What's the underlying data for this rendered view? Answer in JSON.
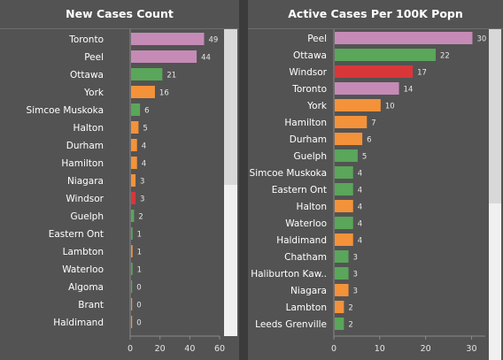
{
  "chart_data": [
    {
      "type": "bar",
      "orientation": "horizontal",
      "title": "New Cases Count",
      "categories": [
        "Toronto",
        "Peel",
        "Ottawa",
        "York",
        "Simcoe Muskoka",
        "Halton",
        "Durham",
        "Hamilton",
        "Niagara",
        "Windsor",
        "Guelph",
        "Eastern Ont",
        "Lambton",
        "Waterloo",
        "Algoma",
        "Brant",
        "Haldimand"
      ],
      "values": [
        49,
        44,
        21,
        16,
        6,
        5,
        4,
        4,
        3,
        3,
        2,
        1,
        1,
        1,
        0,
        0,
        0
      ],
      "colors": [
        "#c58bb6",
        "#c58bb6",
        "#5aa65a",
        "#f4923a",
        "#5aa65a",
        "#f4923a",
        "#f4923a",
        "#f4923a",
        "#f4923a",
        "#d9363a",
        "#5aa65a",
        "#5aa65a",
        "#f4923a",
        "#5aa65a",
        "#5aa65a",
        "#f4923a",
        "#f4923a"
      ],
      "xticks": [
        0,
        20,
        40,
        60
      ],
      "xlim": [
        0,
        60
      ],
      "grid": false,
      "xlabel": "",
      "ylabel": ""
    },
    {
      "type": "bar",
      "orientation": "horizontal",
      "title": "Active Cases Per 100K Popn",
      "categories": [
        "Peel",
        "Ottawa",
        "Windsor",
        "Toronto",
        "York",
        "Hamilton",
        "Durham",
        "Guelph",
        "Simcoe Muskoka",
        "Eastern Ont",
        "Halton",
        "Waterloo",
        "Haldimand",
        "Chatham",
        "Haliburton Kaw..",
        "Niagara",
        "Lambton",
        "Leeds Grenville"
      ],
      "values": [
        30,
        22,
        17,
        14,
        10,
        7,
        6,
        5,
        4,
        4,
        4,
        4,
        4,
        3,
        3,
        3,
        2,
        2
      ],
      "colors": [
        "#c58bb6",
        "#5aa65a",
        "#d9363a",
        "#c58bb6",
        "#f4923a",
        "#f4923a",
        "#f4923a",
        "#5aa65a",
        "#5aa65a",
        "#5aa65a",
        "#f4923a",
        "#5aa65a",
        "#f4923a",
        "#5aa65a",
        "#5aa65a",
        "#f4923a",
        "#f4923a",
        "#5aa65a"
      ],
      "xticks": [
        0,
        10,
        20,
        30
      ],
      "xlim": [
        0,
        33
      ],
      "grid": false,
      "xlabel": "",
      "ylabel": ""
    }
  ],
  "style": {
    "panel_bg": "#535353",
    "page_bg": "#3b3b3b",
    "text_color": "#ffffff",
    "value_label_color": "#e6e6e6",
    "axis_line_color": "#8a8a8a"
  }
}
